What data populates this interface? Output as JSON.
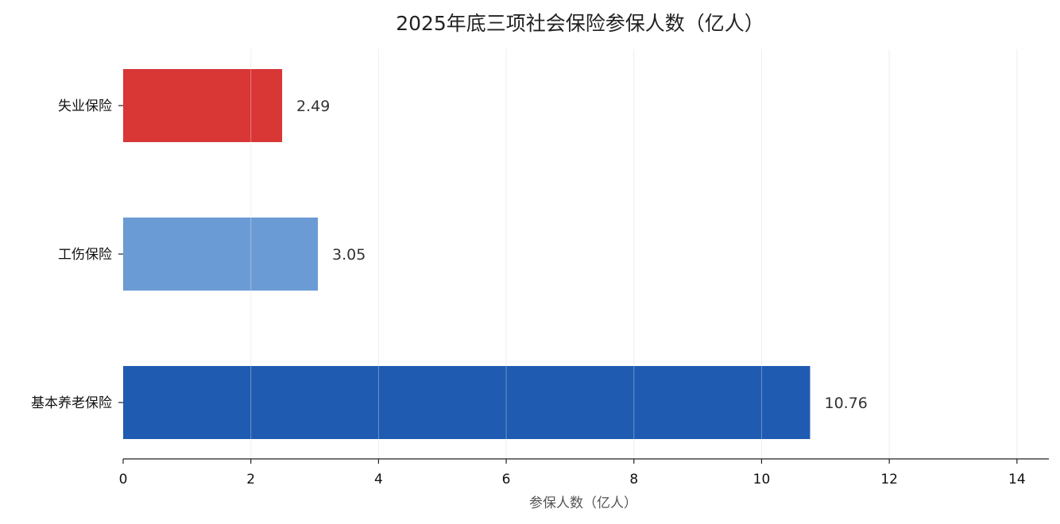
{
  "chart_data": {
    "type": "bar",
    "orientation": "horizontal",
    "title": "2025年底三项社会保险参保人数（亿人）",
    "xlabel": "参保人数（亿人）",
    "ylabel": "",
    "xlim": [
      0,
      14.5
    ],
    "xticks": [
      0,
      2,
      4,
      6,
      8,
      10,
      12,
      14
    ],
    "grid": "vertical",
    "legend": "none",
    "categories": [
      "基本养老保险",
      "工伤保险",
      "失业保险"
    ],
    "values": [
      10.76,
      3.05,
      2.49
    ],
    "value_labels": [
      "10.76",
      "3.05",
      "2.49"
    ],
    "colors": [
      "#1f5bb0",
      "#6b9bd4",
      "#d93636"
    ]
  }
}
